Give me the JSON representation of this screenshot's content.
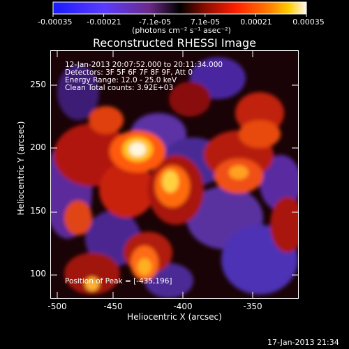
{
  "colorbar": {
    "tick_labels": [
      "-0.00035",
      "-0.00021",
      "-7.1e-05",
      "7.1e-05",
      "0.00021",
      "0.00035"
    ],
    "unit_label": "(photons cm⁻² s⁻¹ asec⁻²)",
    "colors": [
      "#1a1aff",
      "#5a3cff",
      "#6c2a8a",
      "#000000",
      "#8a0d00",
      "#ff1e00",
      "#ff7b00",
      "#ffcc00",
      "#fff8f0"
    ]
  },
  "plot": {
    "title": "Reconstructed RHESSI Image",
    "xlabel": "Heliocentric X (arcsec)",
    "ylabel": "Heliocentric Y (arcsec)",
    "x_ticks": [
      "-500",
      "-450",
      "-400",
      "-350"
    ],
    "y_ticks": [
      "100",
      "150",
      "200",
      "250"
    ],
    "info_lines": [
      "12-Jan-2013 20:07:52.000 to 20:11:34.000",
      "Detectors: 3F 5F 6F 7F 8F 9F, Att 0",
      "Energy Range: 12.0 - 25.0 keV",
      "Clean     Total counts: 3.92E+03"
    ],
    "peak_label": "Position of Peak = [-435,196]"
  },
  "footer": {
    "date": "17-Jan-2013 21:34"
  }
}
